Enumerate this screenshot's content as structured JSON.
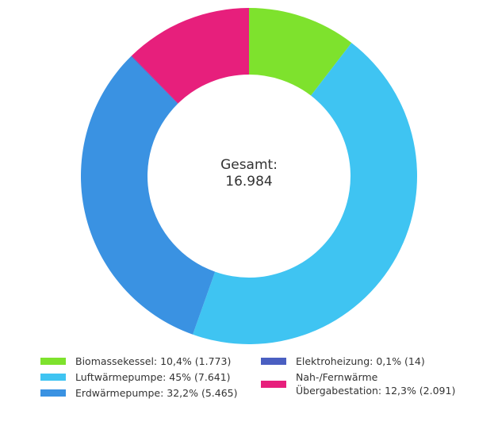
{
  "chart_data": {
    "type": "donut",
    "center_label": {
      "line1": "Gesamt:",
      "line2": "16.984"
    },
    "total": 16984,
    "series": [
      {
        "name": "Biomassekessel",
        "value": 1773,
        "percent": "10,4%",
        "color": "#7ee22d",
        "legend": "Biomassekessel: 10,4% (1.773)"
      },
      {
        "name": "Luftwärmepumpe",
        "value": 7641,
        "percent": "45%",
        "color": "#3fc4f2",
        "legend": "Luftwärmepumpe: 45% (7.641)"
      },
      {
        "name": "Erdwärmepumpe",
        "value": 5465,
        "percent": "32,2%",
        "color": "#3a92e2",
        "legend": "Erdwärmepumpe: 32,2% (5.465)"
      },
      {
        "name": "Elektroheizung",
        "value": 14,
        "percent": "0,1%",
        "color": "#4a5fc1",
        "legend": "Elektroheizung: 0,1% (14)"
      },
      {
        "name": "Nah-/Fernwärme Übergabestation",
        "value": 2091,
        "percent": "12,3%",
        "color": "#e71f7c",
        "legend_line1": "Nah-/Fernwärme",
        "legend_line2": "Übergabestation: 12,3% (2.091)"
      }
    ],
    "legend_placement": "bottom"
  }
}
